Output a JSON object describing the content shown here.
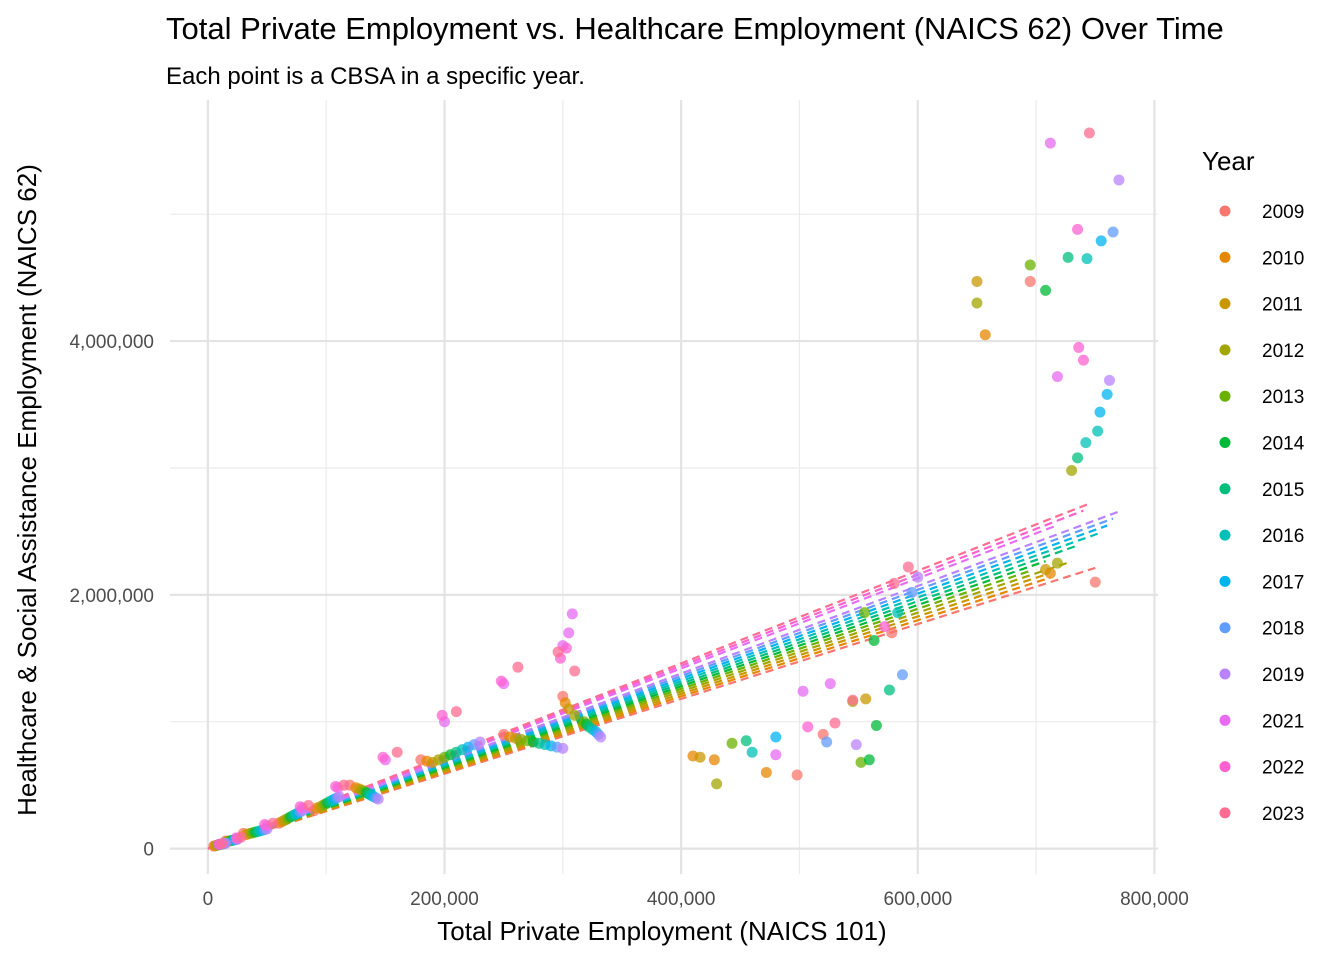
{
  "chart_data": {
    "type": "scatter",
    "title": "Total Private Employment vs. Healthcare Employment (NAICS 62) Over Time",
    "subtitle": "Each point is a CBSA in a specific year.",
    "xlabel": "Total Private Employment (NAICS 101)",
    "ylabel": "Healthcare & Social Assistance Employment (NAICS 62)",
    "xlim": [
      -32000,
      803000
    ],
    "ylim": [
      -200000,
      5900000
    ],
    "x_ticks": [
      {
        "value": 0,
        "label": "0"
      },
      {
        "value": 200000,
        "label": "200,000"
      },
      {
        "value": 400000,
        "label": "400,000"
      },
      {
        "value": 600000,
        "label": "600,000"
      },
      {
        "value": 800000,
        "label": "800,000"
      }
    ],
    "y_ticks": [
      {
        "value": 0,
        "label": "0"
      },
      {
        "value": 2000000,
        "label": "2,000,000"
      },
      {
        "value": 4000000,
        "label": "4,000,000"
      }
    ],
    "grid": true,
    "trend_lines": "dashed linear fit per year",
    "legend": {
      "title": "Year",
      "position": "right"
    },
    "series": [
      {
        "name": "2009",
        "color": "#F8766D",
        "slope": 2.95,
        "points": [
          [
            695000,
            4470000
          ],
          [
            750000,
            2100000
          ],
          [
            578000,
            1700000
          ],
          [
            520000,
            900000
          ],
          [
            498000,
            580000
          ],
          [
            300000,
            1200000
          ],
          [
            250000,
            900000
          ],
          [
            180000,
            700000
          ],
          [
            120000,
            500000
          ],
          [
            90000,
            300000
          ],
          [
            60000,
            200000
          ],
          [
            30000,
            120000
          ],
          [
            15000,
            60000
          ],
          [
            5000,
            20000
          ]
        ]
      },
      {
        "name": "2010",
        "color": "#E58700",
        "slope": 3.0,
        "points": [
          [
            657000,
            4050000
          ],
          [
            712000,
            2170000
          ],
          [
            410000,
            730000
          ],
          [
            428000,
            700000
          ],
          [
            472000,
            600000
          ],
          [
            302000,
            1150000
          ],
          [
            255000,
            880000
          ],
          [
            185000,
            690000
          ],
          [
            125000,
            480000
          ],
          [
            92000,
            320000
          ],
          [
            62000,
            210000
          ],
          [
            32000,
            110000
          ],
          [
            16000,
            55000
          ],
          [
            6000,
            22000
          ]
        ]
      },
      {
        "name": "2011",
        "color": "#C99800",
        "slope": 3.05,
        "points": [
          [
            650000,
            4470000
          ],
          [
            708000,
            2200000
          ],
          [
            556000,
            1180000
          ],
          [
            416000,
            720000
          ],
          [
            305000,
            1100000
          ],
          [
            260000,
            870000
          ],
          [
            190000,
            680000
          ],
          [
            128000,
            470000
          ],
          [
            95000,
            330000
          ],
          [
            64000,
            220000
          ],
          [
            34000,
            115000
          ],
          [
            17000,
            58000
          ],
          [
            7000,
            25000
          ]
        ]
      },
      {
        "name": "2012",
        "color": "#A3A500",
        "slope": 3.1,
        "points": [
          [
            650000,
            4300000
          ],
          [
            718000,
            2250000
          ],
          [
            730000,
            2980000
          ],
          [
            545000,
            1160000
          ],
          [
            430000,
            510000
          ],
          [
            310000,
            1050000
          ],
          [
            265000,
            860000
          ],
          [
            195000,
            700000
          ],
          [
            130000,
            460000
          ],
          [
            97000,
            340000
          ],
          [
            66000,
            230000
          ],
          [
            36000,
            120000
          ],
          [
            18000,
            60000
          ],
          [
            8000,
            28000
          ]
        ]
      },
      {
        "name": "2013",
        "color": "#6BB100",
        "slope": 3.15,
        "points": [
          [
            695000,
            4600000
          ],
          [
            555000,
            1860000
          ],
          [
            552000,
            680000
          ],
          [
            443000,
            830000
          ],
          [
            318000,
            1000000
          ],
          [
            270000,
            850000
          ],
          [
            200000,
            720000
          ],
          [
            132000,
            450000
          ],
          [
            99000,
            350000
          ],
          [
            68000,
            240000
          ],
          [
            38000,
            125000
          ],
          [
            19000,
            62000
          ],
          [
            9000,
            30000
          ]
        ]
      },
      {
        "name": "2014",
        "color": "#00BA38",
        "slope": 3.2,
        "points": [
          [
            708000,
            4400000
          ],
          [
            563000,
            1640000
          ],
          [
            565000,
            970000
          ],
          [
            559000,
            700000
          ],
          [
            320000,
            980000
          ],
          [
            275000,
            840000
          ],
          [
            205000,
            740000
          ],
          [
            134000,
            440000
          ],
          [
            101000,
            360000
          ],
          [
            70000,
            250000
          ],
          [
            40000,
            130000
          ],
          [
            20000,
            64000
          ],
          [
            10000,
            32000
          ]
        ]
      },
      {
        "name": "2015",
        "color": "#00BF7D",
        "slope": 3.25,
        "points": [
          [
            727000,
            4660000
          ],
          [
            576000,
            1250000
          ],
          [
            455000,
            850000
          ],
          [
            735000,
            3080000
          ],
          [
            322000,
            960000
          ],
          [
            280000,
            830000
          ],
          [
            210000,
            760000
          ],
          [
            136000,
            430000
          ],
          [
            103000,
            370000
          ],
          [
            72000,
            260000
          ],
          [
            42000,
            135000
          ],
          [
            21000,
            66000
          ],
          [
            11000,
            34000
          ]
        ]
      },
      {
        "name": "2016",
        "color": "#00C0B8",
        "slope": 3.3,
        "points": [
          [
            743000,
            4650000
          ],
          [
            583000,
            1860000
          ],
          [
            460000,
            760000
          ],
          [
            752000,
            3290000
          ],
          [
            742000,
            3200000
          ],
          [
            325000,
            940000
          ],
          [
            285000,
            820000
          ],
          [
            215000,
            780000
          ],
          [
            138000,
            420000
          ],
          [
            105000,
            380000
          ],
          [
            74000,
            270000
          ],
          [
            44000,
            140000
          ],
          [
            22000,
            68000
          ],
          [
            12000,
            36000
          ]
        ]
      },
      {
        "name": "2017",
        "color": "#00B4EF",
        "slope": 3.35,
        "points": [
          [
            755000,
            4790000
          ],
          [
            760000,
            3580000
          ],
          [
            754000,
            3440000
          ],
          [
            480000,
            880000
          ],
          [
            328000,
            920000
          ],
          [
            290000,
            810000
          ],
          [
            220000,
            800000
          ],
          [
            140000,
            410000
          ],
          [
            107000,
            390000
          ],
          [
            76000,
            280000
          ],
          [
            46000,
            145000
          ],
          [
            23000,
            70000
          ],
          [
            13000,
            38000
          ]
        ]
      },
      {
        "name": "2018",
        "color": "#619CFF",
        "slope": 3.4,
        "points": [
          [
            765000,
            4860000
          ],
          [
            595000,
            2020000
          ],
          [
            587000,
            1370000
          ],
          [
            523000,
            840000
          ],
          [
            330000,
            900000
          ],
          [
            295000,
            800000
          ],
          [
            225000,
            820000
          ],
          [
            142000,
            400000
          ],
          [
            109000,
            400000
          ],
          [
            78000,
            290000
          ],
          [
            48000,
            150000
          ],
          [
            24000,
            72000
          ],
          [
            14000,
            40000
          ]
        ]
      },
      {
        "name": "2019",
        "color": "#B983FF",
        "slope": 3.45,
        "points": [
          [
            770000,
            5270000
          ],
          [
            762000,
            3690000
          ],
          [
            600000,
            2140000
          ],
          [
            548000,
            820000
          ],
          [
            332000,
            880000
          ],
          [
            300000,
            790000
          ],
          [
            230000,
            840000
          ],
          [
            144000,
            390000
          ],
          [
            111000,
            410000
          ],
          [
            80000,
            300000
          ],
          [
            50000,
            155000
          ],
          [
            25000,
            74000
          ],
          [
            15000,
            42000
          ]
        ]
      },
      {
        "name": "2021",
        "color": "#E76BF3",
        "slope": 3.55,
        "points": [
          [
            712000,
            5560000
          ],
          [
            718000,
            3720000
          ],
          [
            503000,
            1240000
          ],
          [
            526000,
            1300000
          ],
          [
            480000,
            740000
          ],
          [
            308000,
            1850000
          ],
          [
            305000,
            1700000
          ],
          [
            300000,
            1600000
          ],
          [
            250000,
            1300000
          ],
          [
            200000,
            1000000
          ],
          [
            150000,
            700000
          ],
          [
            110000,
            480000
          ],
          [
            80000,
            320000
          ],
          [
            50000,
            180000
          ],
          [
            25000,
            80000
          ],
          [
            10000,
            35000
          ]
        ]
      },
      {
        "name": "2022",
        "color": "#FD61D1",
        "slope": 3.6,
        "points": [
          [
            735000,
            4880000
          ],
          [
            736000,
            3950000
          ],
          [
            740000,
            3850000
          ],
          [
            572000,
            1750000
          ],
          [
            507000,
            960000
          ],
          [
            303000,
            1580000
          ],
          [
            298000,
            1500000
          ],
          [
            248000,
            1320000
          ],
          [
            198000,
            1050000
          ],
          [
            148000,
            720000
          ],
          [
            108000,
            490000
          ],
          [
            78000,
            330000
          ],
          [
            48000,
            190000
          ],
          [
            24000,
            85000
          ],
          [
            9000,
            32000
          ]
        ]
      },
      {
        "name": "2023",
        "color": "#FF6C91",
        "slope": 3.65,
        "points": [
          [
            745000,
            5640000
          ],
          [
            592000,
            2220000
          ],
          [
            580000,
            2090000
          ],
          [
            545000,
            1170000
          ],
          [
            530000,
            990000
          ],
          [
            310000,
            1400000
          ],
          [
            296000,
            1550000
          ],
          [
            262000,
            1430000
          ],
          [
            210000,
            1080000
          ],
          [
            160000,
            760000
          ],
          [
            115000,
            500000
          ],
          [
            85000,
            340000
          ],
          [
            55000,
            200000
          ],
          [
            28000,
            90000
          ],
          [
            12000,
            38000
          ]
        ]
      }
    ]
  }
}
